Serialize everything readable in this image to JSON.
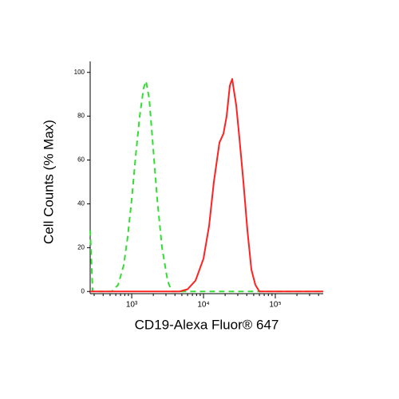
{
  "chart_data": {
    "type": "line",
    "xlabel": "CD19-Alexa Fluor® 647",
    "ylabel": "Cell Counts (% Max)",
    "xscale": "log",
    "xlim": [
      264,
      464159
    ],
    "ylim": [
      -1,
      105
    ],
    "xticks": [
      {
        "value": 1000,
        "label": "10³"
      },
      {
        "value": 10000,
        "label": "10⁴"
      },
      {
        "value": 100000,
        "label": "10⁵"
      }
    ],
    "xminorticks": [
      300,
      400,
      500,
      600,
      700,
      800,
      900,
      2000,
      3000,
      4000,
      5000,
      6000,
      7000,
      8000,
      9000,
      20000,
      30000,
      40000,
      50000,
      60000,
      70000,
      80000,
      90000,
      200000,
      300000,
      400000
    ],
    "yticks": [
      0,
      20,
      40,
      60,
      80,
      100
    ],
    "x": [
      264,
      286,
      316,
      408,
      527,
      647,
      774,
      880,
      1000,
      1137,
      1292,
      1468,
      1585,
      1755,
      1995,
      2268,
      2643,
      3162,
      3594,
      4642,
      5995,
      7743,
      10000,
      11965,
      13935,
      16681,
      18957,
      21001,
      23263,
      25119,
      26439,
      28556,
      31623,
      35938,
      40842,
      46416,
      52749,
      59948,
      77426,
      113646,
      189574,
      316228,
      464159
    ],
    "series": [
      {
        "color": "#33dd33",
        "style": "dashed",
        "values": [
          28,
          0,
          0,
          0,
          0,
          3,
          12,
          25,
          42,
          62,
          80,
          93,
          96,
          88,
          65,
          42,
          20,
          5,
          0,
          0,
          0,
          0,
          0,
          0,
          0,
          0,
          0,
          0,
          0,
          0,
          0,
          0,
          0,
          0,
          0,
          0,
          0,
          0,
          0,
          0,
          0,
          0,
          0
        ]
      },
      {
        "color": "#ff2222",
        "style": "solid",
        "values": [
          0,
          0,
          0,
          0,
          0,
          0,
          0,
          0,
          0,
          0,
          0,
          0,
          0,
          0,
          0,
          0,
          0,
          0,
          0,
          0,
          1,
          5,
          15,
          30,
          50,
          68,
          72,
          80,
          94,
          97,
          92,
          85,
          70,
          50,
          28,
          10,
          3,
          0,
          0,
          0,
          0,
          0,
          0
        ]
      }
    ]
  }
}
